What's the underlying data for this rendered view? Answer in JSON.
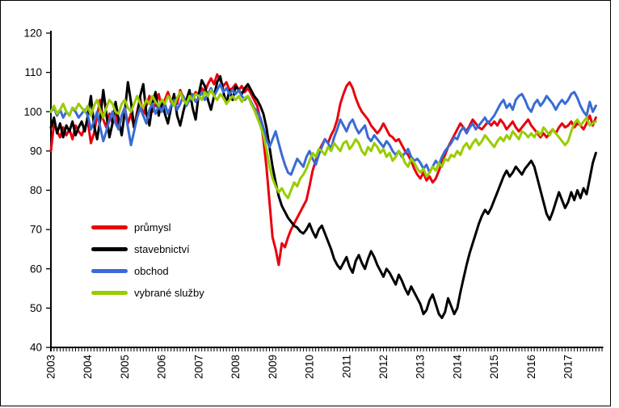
{
  "window": {
    "background": "#FFFFFF",
    "frame_border_color": "#000000"
  },
  "chart_data": {
    "type": "line",
    "title": "",
    "xlabel": "",
    "ylabel": "",
    "grid": false,
    "legend_position": "inside-left",
    "x_axis": {
      "unit": "month",
      "start_year": 2003,
      "months_total": 180,
      "tick_years": [
        2003,
        2004,
        2005,
        2006,
        2007,
        2008,
        2009,
        2010,
        2011,
        2012,
        2013,
        2014,
        2015,
        2016,
        2017
      ]
    },
    "y_axis": {
      "min": 40,
      "max": 120,
      "ticks": [
        120,
        110,
        100,
        90,
        80,
        70,
        60,
        50,
        40
      ]
    },
    "series": [
      {
        "name": "průmysl",
        "color": "#E8000D",
        "values": [
          90,
          97,
          95,
          93.5,
          96,
          94,
          95.5,
          93,
          96.5,
          95,
          94,
          96,
          97.5,
          92,
          94.5,
          99,
          103,
          98,
          96,
          99.5,
          97,
          100.5,
          95.5,
          99,
          101,
          97,
          99.5,
          96,
          100,
          103.5,
          99,
          101.5,
          104,
          100,
          102,
          104.5,
          101,
          103,
          105,
          102.5,
          104,
          102,
          105.5,
          103.5,
          102,
          104.5,
          103,
          105,
          104,
          106,
          105,
          107,
          108.5,
          107,
          109.5,
          108,
          106.5,
          107.5,
          105.5,
          106,
          107,
          105.5,
          106.5,
          105,
          106,
          104.5,
          103,
          101.5,
          98,
          93,
          86,
          77,
          68,
          65,
          61,
          66.5,
          65.5,
          68,
          70,
          71.5,
          73,
          74.5,
          76,
          77.5,
          81,
          85,
          87.5,
          90,
          91.5,
          93,
          92,
          94,
          95.5,
          98,
          102,
          104.5,
          106.5,
          107.5,
          106,
          103.5,
          101.5,
          100,
          99,
          98,
          96.5,
          95.5,
          94.5,
          95.5,
          97,
          95.5,
          94,
          93.5,
          92.5,
          93,
          91.5,
          90,
          89,
          87.5,
          85.5,
          84,
          83,
          84.5,
          82.5,
          83.5,
          82,
          83,
          85,
          87,
          89,
          91,
          92.5,
          94,
          95.5,
          97,
          96,
          95,
          96.5,
          98,
          97,
          96,
          95.5,
          96.5,
          97.5,
          96.5,
          97.5,
          96.5,
          98,
          97,
          95.5,
          96.5,
          97.5,
          96,
          95,
          96,
          97,
          98,
          96.5,
          95.5,
          94.5,
          93.5,
          94.5,
          93.5,
          94.5,
          95.5,
          94.5,
          96,
          97,
          96,
          96.5,
          97.5,
          96,
          97,
          96.5,
          95.5,
          97,
          99,
          96.5,
          98.5
        ]
      },
      {
        "name": "stavebnictví",
        "color": "#000000",
        "values": [
          96,
          98.5,
          94.5,
          97,
          93.5,
          96.5,
          95,
          97.5,
          94,
          96,
          97.5,
          95,
          99,
          104,
          96.5,
          93,
          98,
          105.5,
          99.5,
          93.5,
          97,
          102.5,
          98,
          94,
          100,
          107.5,
          102.5,
          96,
          99,
          104,
          107,
          99.5,
          96.5,
          102,
          105,
          99,
          103,
          99.5,
          97,
          101,
          104.5,
          99,
          96.5,
          100,
          103,
          105.5,
          101,
          98,
          104.5,
          108,
          106.5,
          103,
          100.5,
          104,
          107.5,
          109,
          105,
          102,
          105.5,
          103,
          106.5,
          105.5,
          104.5,
          106,
          107,
          105.5,
          104,
          103,
          101.5,
          99.5,
          96,
          91,
          86,
          82,
          78.5,
          76,
          74.5,
          73,
          72,
          71,
          70.5,
          69.5,
          69,
          70,
          71.5,
          69.5,
          68,
          70,
          71,
          69,
          67,
          65,
          62.5,
          61,
          60,
          61.5,
          63,
          60.5,
          59,
          62,
          63.5,
          61.5,
          60,
          62.5,
          64.5,
          63,
          61,
          59.5,
          58,
          60,
          59,
          57.5,
          56,
          58.5,
          57,
          55,
          53.5,
          55.5,
          54,
          52.5,
          51,
          48.5,
          49.5,
          52,
          53.5,
          51,
          48.5,
          47.5,
          49,
          52.5,
          50.5,
          48.5,
          50,
          54,
          57.5,
          61,
          64,
          66.5,
          69,
          71.5,
          73.5,
          75,
          74,
          75.5,
          77.5,
          79.5,
          81.5,
          83.5,
          85,
          83.5,
          84.5,
          86,
          85,
          84,
          85.5,
          86.5,
          87.5,
          86,
          83,
          80,
          77,
          74,
          72.5,
          74.5,
          77,
          79.5,
          77.5,
          75.5,
          77,
          79.5,
          77.5,
          80,
          78,
          80.5,
          79,
          83,
          87,
          89.5
        ]
      },
      {
        "name": "obchod",
        "color": "#3A6BD5",
        "values": [
          100,
          101,
          99,
          100.5,
          98.5,
          100,
          99,
          101,
          100,
          98.5,
          99.5,
          100.5,
          99,
          95.5,
          97.5,
          100,
          96,
          92.5,
          95,
          98,
          100,
          97,
          95.5,
          99,
          101,
          96,
          91.5,
          95,
          98.5,
          101,
          99,
          97,
          100.5,
          102,
          99.5,
          101.5,
          100,
          102,
          99.5,
          101.5,
          103,
          100.5,
          102,
          104,
          101.5,
          103,
          104.5,
          102.5,
          103.5,
          105,
          103,
          104.5,
          106,
          104,
          105.5,
          107,
          105,
          106,
          104.5,
          105.5,
          104.5,
          105.5,
          104,
          103,
          104,
          102.5,
          101,
          100,
          98.5,
          96,
          93,
          91,
          93,
          95,
          92,
          89,
          86.5,
          84.5,
          84,
          86,
          88,
          87,
          86,
          88.5,
          90,
          88,
          86.5,
          89,
          91,
          93,
          92,
          90.5,
          93.5,
          95.5,
          98,
          96.5,
          95,
          97,
          98,
          96,
          94.5,
          95.5,
          96.5,
          93.5,
          92.5,
          94,
          93,
          92,
          91,
          92.5,
          91.5,
          90,
          89,
          90,
          88.5,
          89.5,
          90.5,
          88.5,
          87.5,
          88,
          87,
          85.5,
          86.5,
          84.5,
          86,
          87.5,
          86.5,
          88.5,
          90,
          91,
          92,
          93.5,
          93,
          95,
          96,
          94.5,
          96,
          97,
          95.5,
          96.5,
          97.5,
          98.5,
          97,
          98,
          99,
          100.5,
          102,
          103,
          101,
          102,
          100.5,
          103,
          104,
          104.5,
          103,
          101,
          100,
          102,
          103,
          101.5,
          102.5,
          104,
          103,
          102,
          100.5,
          102,
          103,
          102,
          103,
          104.5,
          105,
          103.5,
          101.5,
          100,
          99,
          102.5,
          100,
          101.5
        ]
      },
      {
        "name": "vybrané služby",
        "color": "#99CC00",
        "values": [
          100,
          101.5,
          99.5,
          100.5,
          102,
          100,
          99,
          101,
          100.5,
          102,
          101,
          100,
          101.5,
          99,
          101.5,
          103,
          100.5,
          98.5,
          101,
          103,
          102,
          100,
          99.5,
          102,
          103,
          101,
          100,
          102,
          104,
          102,
          101,
          103,
          102,
          104,
          102.5,
          101.5,
          103,
          102,
          104,
          103,
          101.5,
          103.5,
          105,
          103,
          102,
          104,
          103,
          104.5,
          104,
          103,
          105,
          104,
          105.5,
          104,
          103,
          104.5,
          103.5,
          102,
          103,
          104,
          103,
          104,
          102.5,
          103.5,
          104,
          102,
          100.5,
          98.5,
          96.5,
          94,
          90.5,
          86,
          83,
          81,
          79.5,
          80.5,
          79,
          78,
          80,
          82,
          81,
          83,
          84,
          85.5,
          87.5,
          89.5,
          88.5,
          90.5,
          90,
          89,
          91,
          90,
          92,
          91,
          90,
          92,
          92.5,
          90.5,
          91.5,
          93,
          92,
          90,
          89,
          91,
          90,
          92,
          91,
          89.5,
          90.5,
          88.5,
          89.5,
          87.5,
          88.5,
          90,
          89,
          87,
          86,
          88,
          87,
          85.5,
          84.5,
          85.5,
          83.5,
          84.5,
          86,
          85,
          87,
          86,
          88,
          87.5,
          89,
          88.5,
          90,
          89,
          91,
          92,
          90.5,
          92,
          93,
          91.5,
          92.5,
          94,
          93,
          92,
          91,
          92.5,
          93.5,
          92.5,
          94,
          93,
          95,
          94,
          93,
          95,
          94.5,
          93.5,
          94.5,
          93.5,
          95,
          94,
          96,
          95,
          94,
          95.5,
          94.5,
          93.5,
          92.5,
          91.5,
          92.5,
          95,
          97,
          98,
          96.5,
          97.5,
          98.5,
          96.5,
          97,
          97.5
        ]
      }
    ]
  }
}
